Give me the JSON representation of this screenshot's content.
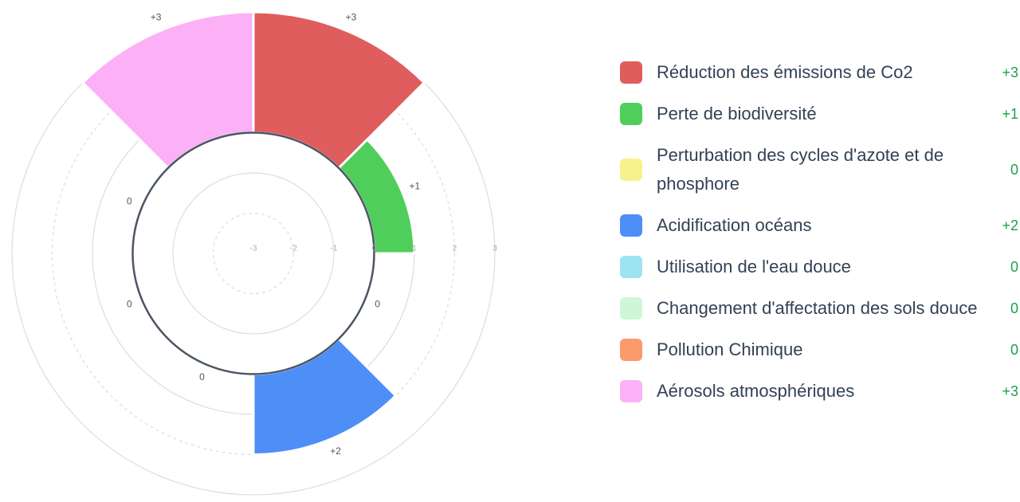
{
  "chart_data": {
    "type": "polarArea",
    "categories": [
      "Réduction des émissions de Co2",
      "Perte de biodiversité",
      "Perturbation des cycles d'azote et de phosphore",
      "Acidification océans",
      "Utilisation de l'eau douce",
      "Changement d'affectation des sols douce",
      "Pollution Chimique",
      "Aérosols atmosphériques"
    ],
    "values": [
      3,
      1,
      0,
      2,
      0,
      0,
      0,
      3
    ],
    "value_labels": [
      "+3",
      "+1",
      "0",
      "+2",
      "0",
      "0",
      "0",
      "+3"
    ],
    "colors": [
      "#e05d5d",
      "#4fce5c",
      "#f7f28a",
      "#4e8ef7",
      "#9ee3f2",
      "#cdf7d6",
      "#fb9a6b",
      "#fcb0f5"
    ],
    "rlim": [
      -3,
      3
    ],
    "rticks": [
      -3,
      -2,
      -1,
      0,
      1,
      2,
      3
    ]
  }
}
